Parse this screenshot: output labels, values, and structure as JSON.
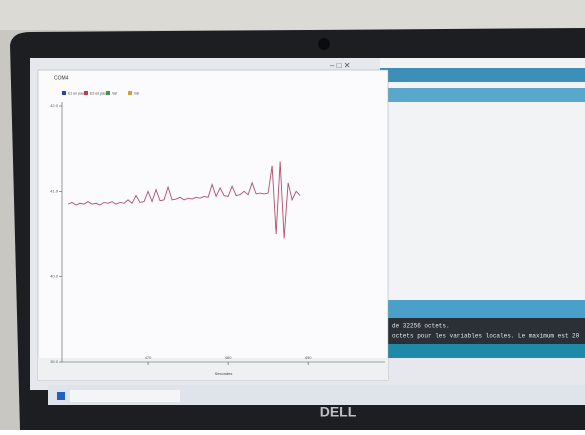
{
  "window": {
    "title": "COM4"
  },
  "console": [
    "de 32256 octets.",
    "octets pour les variables locales. Le maximum est 20"
  ],
  "brand": "DELL",
  "chart_data": {
    "type": "line",
    "legend": [
      {
        "name": "E1 en pause",
        "color": "#2a3fbf"
      },
      {
        "name": "E2 en pause",
        "color": "#c23a4a"
      },
      {
        "name": "Val",
        "color": "#3a9a4a"
      },
      {
        "name": "Val",
        "color": "#d8a030"
      }
    ],
    "x_label": "Secondes",
    "x": [
      460,
      460.5,
      461,
      461.5,
      462,
      462.5,
      463,
      463.5,
      464,
      464.5,
      465,
      465.5,
      466,
      466.5,
      467,
      467.5,
      468,
      468.5,
      469,
      469.5,
      470,
      470.5,
      471,
      471.5,
      472,
      472.5,
      473,
      473.5,
      474,
      474.5,
      475,
      475.5,
      476,
      476.5,
      477,
      477.5,
      478,
      478.5,
      479,
      479.5,
      480,
      480.5,
      481,
      481.5,
      482,
      482.5,
      483,
      483.5,
      484,
      484.5,
      485,
      485.5,
      486,
      486.5,
      487,
      487.5,
      488,
      488.5,
      489
    ],
    "series": [
      {
        "name": "E1 en pause",
        "color": "#b0506a",
        "values": [
          40.85,
          40.87,
          40.84,
          40.86,
          40.85,
          40.88,
          40.85,
          40.86,
          40.84,
          40.87,
          40.86,
          40.88,
          40.85,
          40.87,
          40.86,
          40.9,
          40.86,
          40.95,
          40.87,
          40.88,
          41.0,
          40.88,
          41.02,
          40.89,
          40.9,
          41.05,
          40.9,
          40.91,
          40.93,
          40.9,
          40.92,
          40.91,
          40.93,
          40.92,
          40.94,
          40.93,
          41.08,
          40.94,
          41.04,
          40.95,
          40.94,
          41.06,
          40.95,
          40.96,
          41.0,
          40.96,
          41.1,
          40.97,
          40.98,
          40.97,
          40.98,
          41.3,
          40.5,
          41.35,
          40.45,
          41.1,
          40.9,
          41.0,
          40.95
        ]
      }
    ],
    "xlim": [
      459.25,
      499.6
    ],
    "xticks": [
      470,
      480,
      490
    ],
    "ylim": [
      39,
      42
    ],
    "yticks": [
      {
        "value": 42,
        "label": "42.0"
      },
      {
        "value": 41,
        "label": "41.0"
      },
      {
        "value": 40,
        "label": "40.0"
      },
      {
        "value": 39,
        "label": "39.0"
      }
    ]
  }
}
